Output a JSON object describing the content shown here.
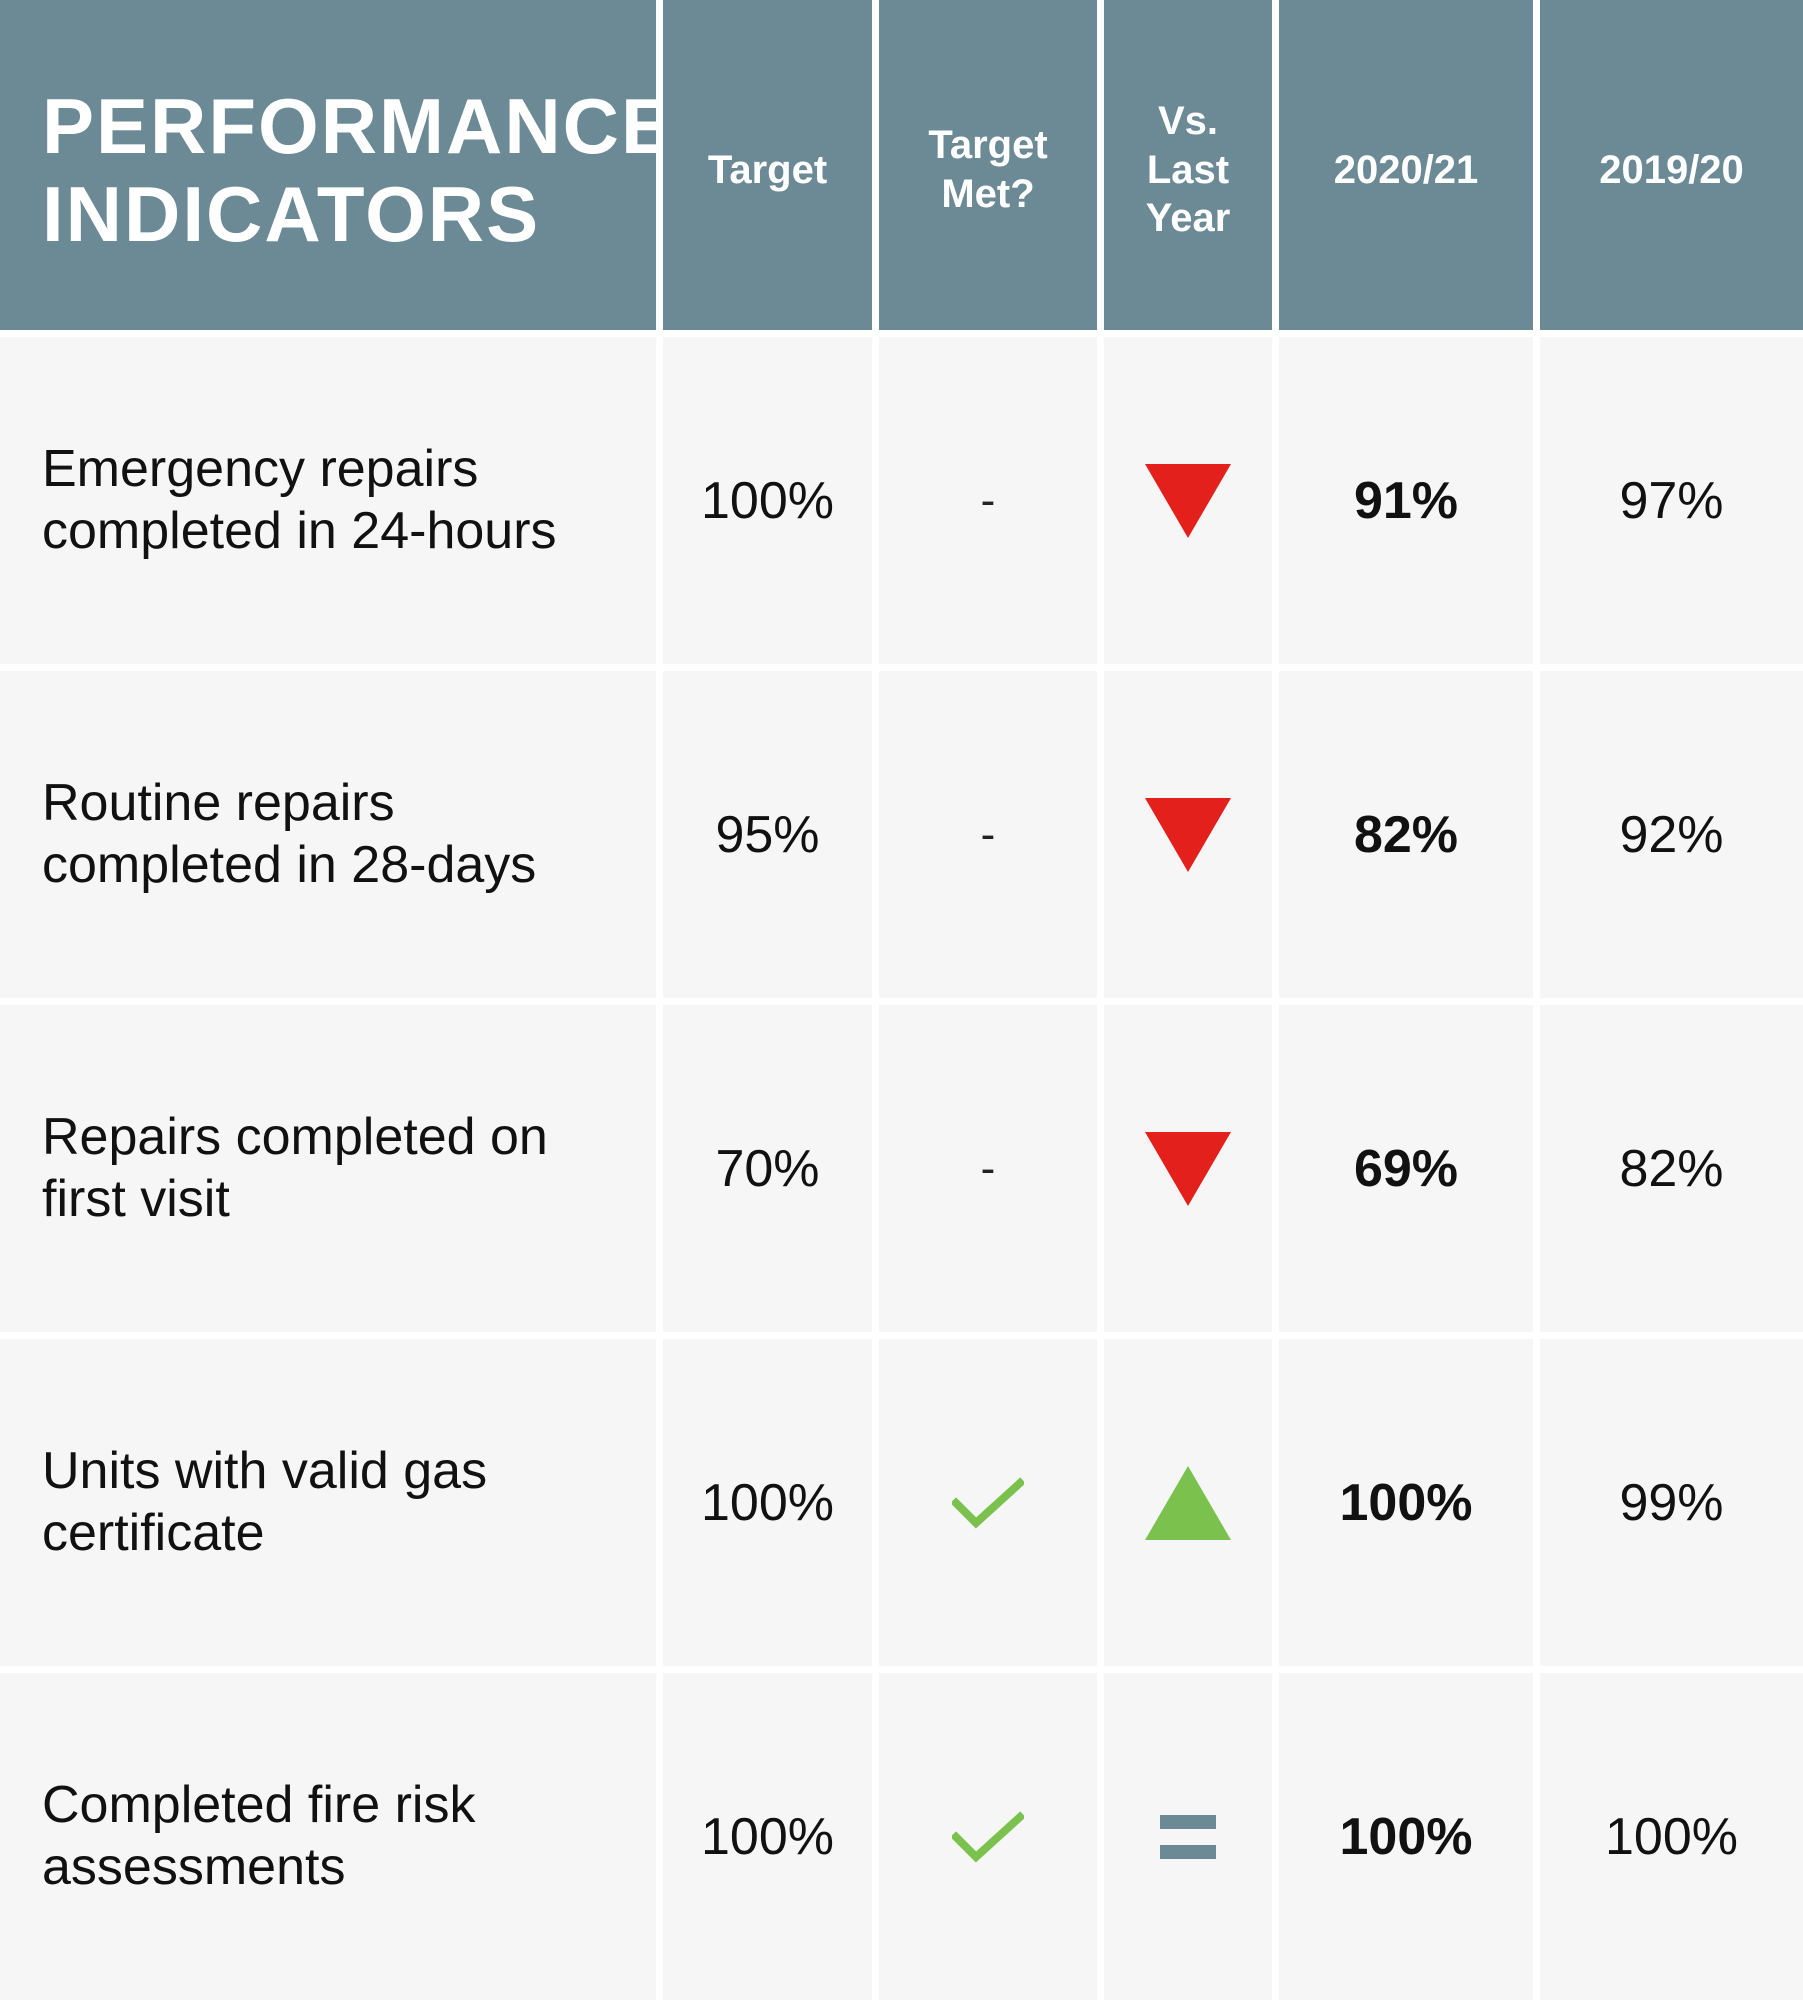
{
  "header": {
    "title_line1": "PERFORMANCE",
    "title_line2": "INDICATORS",
    "target": "Target",
    "target_met": "Target Met?",
    "vs_last_year": "Vs. Last Year",
    "year_current": "2020/21",
    "year_previous": "2019/20"
  },
  "colors": {
    "header_bg": "#6b8a96",
    "row_bg": "#f6f6f6",
    "down_arrow": "#e3201b",
    "up_arrow": "#7bc14e",
    "check": "#7bc14e",
    "equal": "#6b8a96"
  },
  "rows": [
    {
      "label_line1": "Emergency repairs",
      "label_line2": "completed in 24-hours",
      "target": "100%",
      "target_met": "-",
      "target_met_icon": "none",
      "trend": "down-triangle-icon",
      "current": "91%",
      "previous": "97%"
    },
    {
      "label_line1": "Routine repairs",
      "label_line2": "completed in 28-days",
      "target": "95%",
      "target_met": "-",
      "target_met_icon": "none",
      "trend": "down-triangle-icon",
      "current": "82%",
      "previous": "92%"
    },
    {
      "label_line1": "Repairs completed on",
      "label_line2": "first visit",
      "target": "70%",
      "target_met": "-",
      "target_met_icon": "none",
      "trend": "down-triangle-icon",
      "current": "69%",
      "previous": "82%"
    },
    {
      "label_line1": "Units with valid gas",
      "label_line2": "certificate",
      "target": "100%",
      "target_met": "",
      "target_met_icon": "check-icon",
      "trend": "up-triangle-icon",
      "current": "100%",
      "previous": "99%"
    },
    {
      "label_line1": "Completed fire risk",
      "label_line2": "assessments",
      "target": "100%",
      "target_met": "",
      "target_met_icon": "check-icon",
      "trend": "equal-icon",
      "current": "100%",
      "previous": "100%"
    }
  ]
}
